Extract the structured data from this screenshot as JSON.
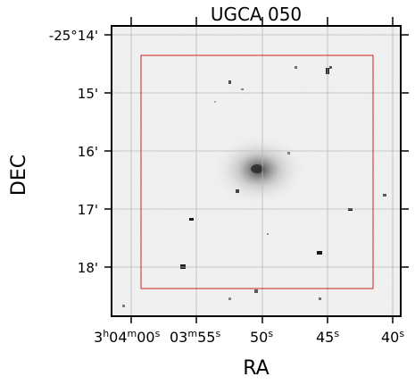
{
  "figure": {
    "title": "UGCA 050",
    "xlabel": "RA",
    "ylabel": "DEC"
  },
  "axes": {
    "x_ticks": [
      {
        "label_hms": "3h04m00s",
        "parts": [
          "3",
          "h",
          "04",
          "m",
          "00",
          "s"
        ]
      },
      {
        "label_hms": "03m55s",
        "parts": [
          "03",
          "m",
          "55",
          "s"
        ]
      },
      {
        "label_hms": "50s",
        "parts": [
          "50",
          "s"
        ]
      },
      {
        "label_hms": "45s",
        "parts": [
          "45",
          "s"
        ]
      },
      {
        "label_hms": "40s",
        "parts": [
          "40",
          "s"
        ]
      }
    ],
    "y_ticks": [
      "-25°14'",
      "15'",
      "16'",
      "17'",
      "18'"
    ],
    "grid": true
  },
  "overlay": {
    "shape": "rectangle",
    "color": "#cc2222"
  },
  "image": {
    "colormap": "grayscale-inverted",
    "background": "#f4f4f4"
  }
}
